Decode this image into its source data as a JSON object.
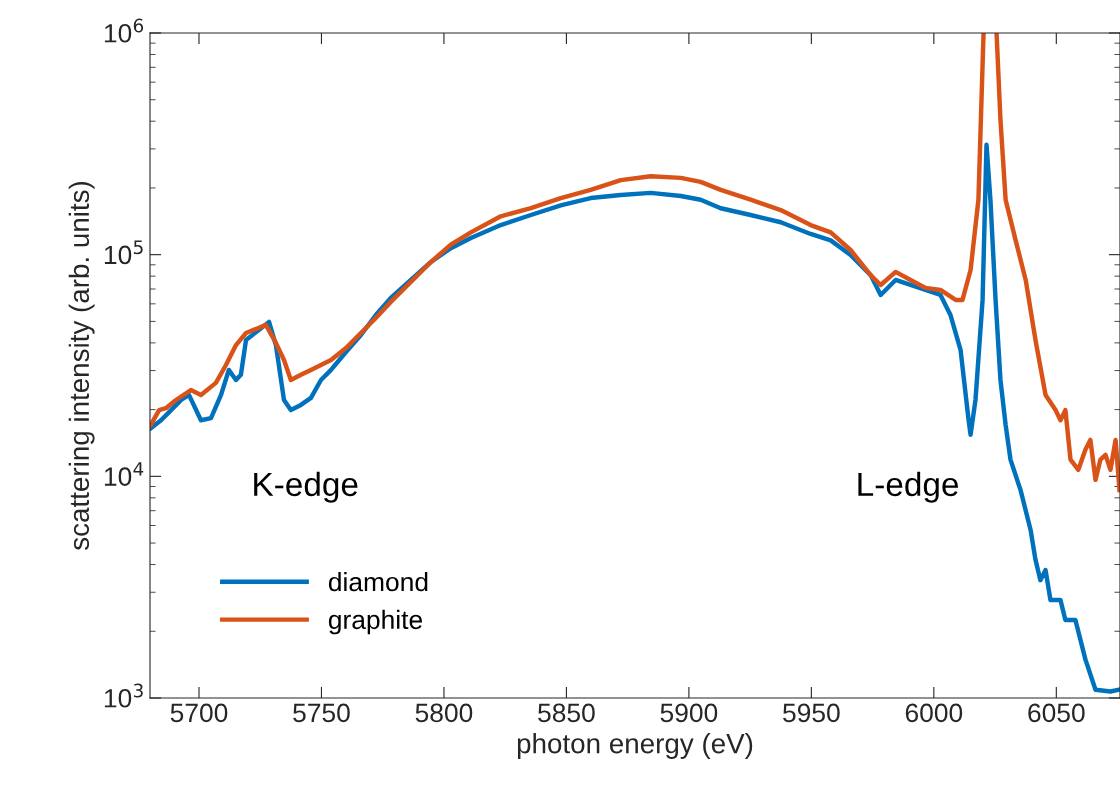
{
  "chart_data": {
    "type": "line",
    "xlabel": "photon energy (eV)",
    "ylabel": "scattering intensity (arb. units)",
    "log": "y",
    "xlim": [
      5680,
      6076
    ],
    "ylim": [
      1000,
      1000000
    ],
    "xticks": [
      5700,
      5750,
      5800,
      5850,
      5900,
      5950,
      6000,
      6050
    ],
    "yticks": [
      {
        "value": 1000,
        "label": "10$^{3}$"
      },
      {
        "value": 10000,
        "label": "10$^{4}$"
      },
      {
        "value": 100000,
        "label": "10$^{5}$"
      },
      {
        "value": 1000000,
        "label": "10$^{6}$"
      }
    ],
    "grid": false,
    "legend": "bottom left",
    "line_style": "solid",
    "marker": "none",
    "annotations": [
      "K-edge",
      "L-edge"
    ],
    "series": [
      {
        "name": "diamond",
        "color": "#0072bd",
        "x": [
          5680.4,
          5684.5,
          5688.6,
          5692.7,
          5695.9,
          5700.8,
          5704.9,
          5709.0,
          5712.2,
          5715.1,
          5717.1,
          5719.2,
          5728.6,
          5731.4,
          5734.7,
          5737.5,
          5741.6,
          5745.7,
          5749.8,
          5753.9,
          5760.0,
          5766.1,
          5772.2,
          5778.3,
          5786.5,
          5794.7,
          5802.8,
          5811.0,
          5823.2,
          5835.5,
          5847.7,
          5859.9,
          5872.2,
          5884.4,
          5896.7,
          5904.8,
          5913.0,
          5925.2,
          5937.5,
          5949.7,
          5957.9,
          5966.0,
          5974.2,
          5978.3,
          5984.4,
          5990.5,
          5996.6,
          6002.7,
          6006.8,
          6010.9,
          6014.2,
          6015.0,
          6017.0,
          6019.9,
          6021.5,
          6023.1,
          6025.2,
          6027.2,
          6029.3,
          6031.3,
          6035.4,
          6039.5,
          6041.5,
          6043.5,
          6045.6,
          6047.6,
          6051.7,
          6053.7,
          6057.8,
          6061.9,
          6066.0,
          6072.1,
          6075.8
        ],
        "values": [
          16500,
          17900,
          19900,
          22100,
          23300,
          17900,
          18300,
          23300,
          30200,
          27200,
          28700,
          41200,
          49700,
          39100,
          22100,
          19900,
          21000,
          22600,
          27200,
          30200,
          36400,
          43400,
          53400,
          63800,
          76900,
          92700,
          107000,
          119000,
          136000,
          151000,
          167000,
          180000,
          186000,
          190000,
          184000,
          177000,
          162000,
          151000,
          140000,
          124000,
          116000,
          99700,
          80900,
          65800,
          76900,
          73000,
          69300,
          65800,
          53400,
          37200,
          17900,
          15400,
          22100,
          62500,
          313000,
          177000,
          62500,
          27200,
          17100,
          11900,
          8670,
          5730,
          4200,
          3400,
          3780,
          2770,
          2770,
          2250,
          2250,
          1490,
          1090,
          1070,
          1090
        ]
      },
      {
        "name": "graphite",
        "color": "#d95319",
        "x": [
          5680.4,
          5683.7,
          5686.5,
          5690.6,
          5696.7,
          5700.8,
          5706.9,
          5711.0,
          5715.1,
          5719.2,
          5727.3,
          5731.4,
          5734.7,
          5737.5,
          5741.6,
          5745.7,
          5749.8,
          5753.9,
          5760.0,
          5766.1,
          5772.2,
          5778.3,
          5786.5,
          5794.7,
          5802.8,
          5811.0,
          5823.2,
          5835.5,
          5847.7,
          5859.9,
          5872.2,
          5884.4,
          5896.7,
          5904.8,
          5913.0,
          5925.2,
          5937.5,
          5949.7,
          5957.9,
          5966.0,
          5974.2,
          5978.3,
          5984.4,
          5990.5,
          5996.6,
          6002.7,
          6008.9,
          6011.7,
          6015.0,
          6018.2,
          6020.3,
          6022.5,
          6025.6,
          6027.2,
          6029.3,
          6033.4,
          6037.5,
          6041.5,
          6045.6,
          6049.7,
          6051.7,
          6053.7,
          6055.8,
          6059.0,
          6061.9,
          6063.9,
          6066.0,
          6068.0,
          6070.1,
          6072.1,
          6074.2,
          6075.8
        ],
        "values": [
          17100,
          19900,
          20300,
          22100,
          24500,
          23300,
          26400,
          31800,
          39100,
          44300,
          48200,
          40000,
          33500,
          27200,
          28700,
          30200,
          31800,
          33500,
          37900,
          44300,
          51800,
          61200,
          75300,
          92700,
          111000,
          126000,
          149000,
          162000,
          180000,
          196000,
          217000,
          226000,
          222000,
          213000,
          196000,
          177000,
          159000,
          136000,
          126000,
          105000,
          80900,
          73000,
          83600,
          76900,
          70800,
          69300,
          62500,
          62500,
          85300,
          177000,
          1000000,
          null,
          1000000,
          405000,
          177000,
          116000,
          76900,
          41200,
          23300,
          19900,
          17900,
          19900,
          11900,
          10700,
          13200,
          14600,
          9640,
          11900,
          12500,
          10700,
          14600,
          8670
        ]
      }
    ]
  }
}
